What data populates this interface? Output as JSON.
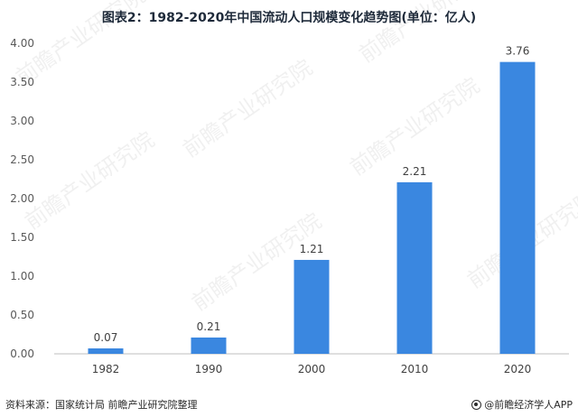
{
  "chart_data": {
    "type": "bar",
    "title": "图表2：1982-2020年中国流动人口规模变化趋势图(单位：亿人)",
    "categories": [
      "1982",
      "1990",
      "2000",
      "2010",
      "2020"
    ],
    "values": [
      0.07,
      0.21,
      1.21,
      2.21,
      3.76
    ],
    "value_labels": [
      "0.07",
      "0.21",
      "1.21",
      "2.21",
      "3.76"
    ],
    "y_ticks": [
      "0.00",
      "0.50",
      "1.00",
      "1.50",
      "2.00",
      "2.50",
      "3.00",
      "3.50",
      "4.00"
    ],
    "ylim": [
      0,
      4
    ],
    "grid": false,
    "legend": "none",
    "bar_color": "#3a87e0"
  },
  "footer": {
    "source": "资料来源：国家统计局 前瞻产业研究院整理",
    "brand": "@前瞻经济学人APP",
    "brand_icon": "brand-logo-icon"
  },
  "watermark": "前瞻产业研究院"
}
